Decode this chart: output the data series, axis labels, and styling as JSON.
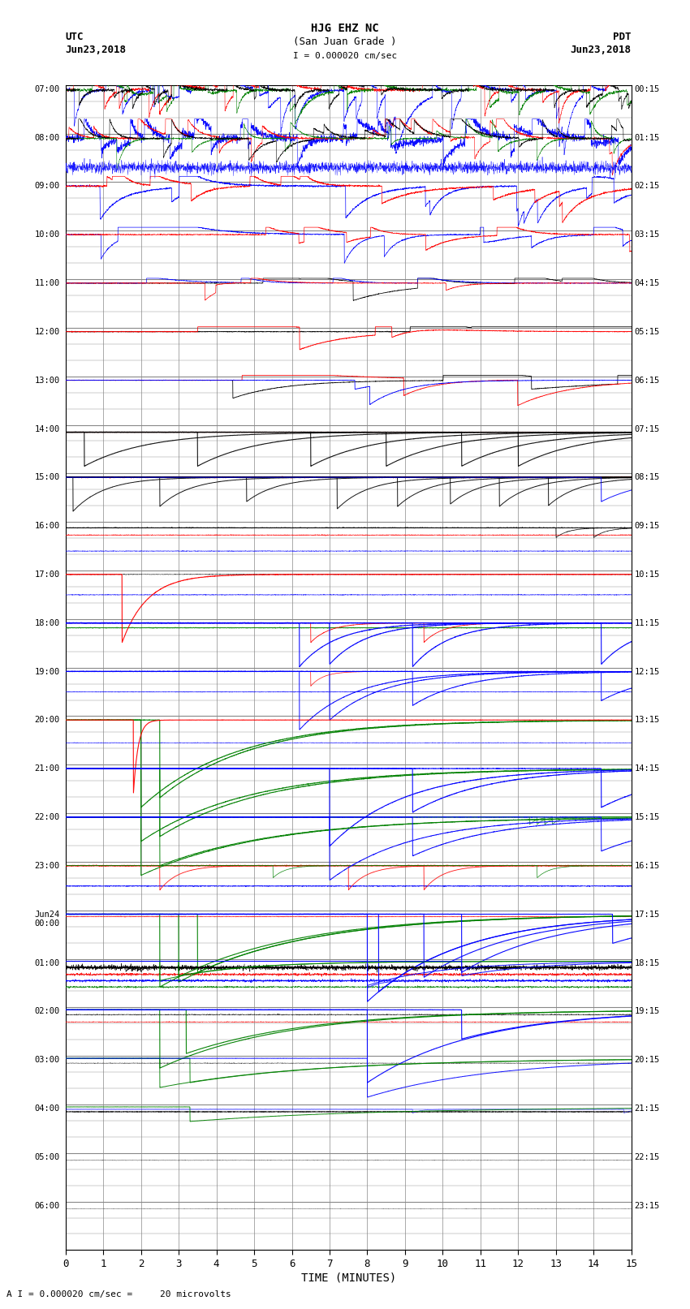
{
  "title_line1": "HJG EHZ NC",
  "title_line2": "(San Juan Grade )",
  "scale_label": "I = 0.000020 cm/sec",
  "bottom_label": "A I = 0.000020 cm/sec =     20 microvolts",
  "xlabel": "TIME (MINUTES)",
  "utc_labels": [
    "07:00",
    "08:00",
    "09:00",
    "10:00",
    "11:00",
    "12:00",
    "13:00",
    "14:00",
    "15:00",
    "16:00",
    "17:00",
    "18:00",
    "19:00",
    "20:00",
    "21:00",
    "22:00",
    "23:00",
    "Jun24\n00:00",
    "01:00",
    "02:00",
    "03:00",
    "04:00",
    "05:00",
    "06:00"
  ],
  "pdt_labels": [
    "00:15",
    "01:15",
    "02:15",
    "03:15",
    "04:15",
    "05:15",
    "06:15",
    "07:15",
    "08:15",
    "09:15",
    "10:15",
    "11:15",
    "12:15",
    "13:15",
    "14:15",
    "15:15",
    "16:15",
    "17:15",
    "18:15",
    "19:15",
    "20:15",
    "21:15",
    "22:15",
    "23:15"
  ],
  "n_rows": 24,
  "xmin": 0,
  "xmax": 15,
  "bg_color": "#ffffff",
  "grid_color": "#888888",
  "figwidth": 8.5,
  "figheight": 16.13,
  "dpi": 100
}
